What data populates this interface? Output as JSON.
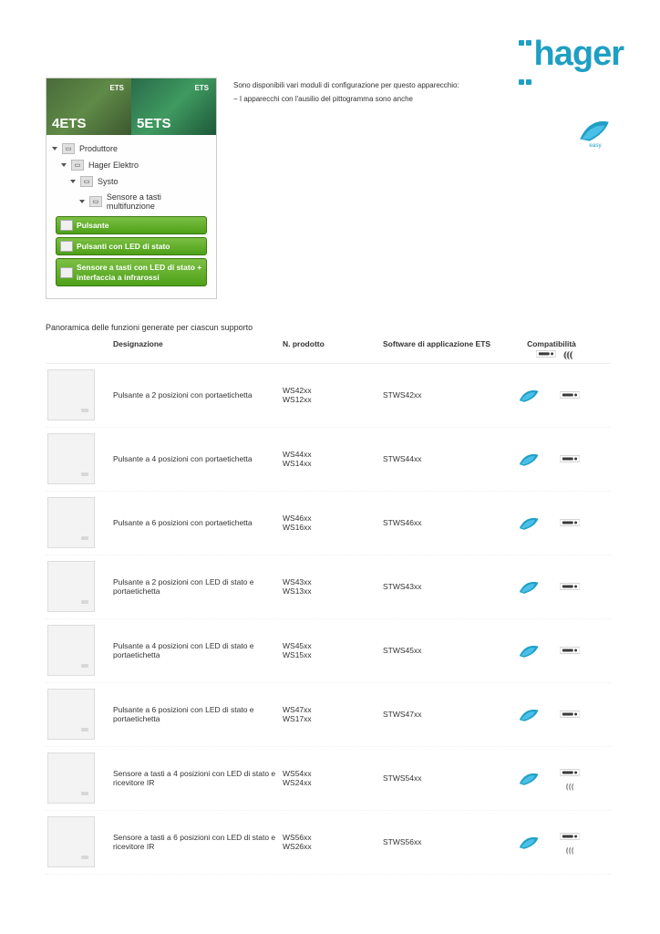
{
  "brand": {
    "name": "hager",
    "color": "#1e9fc4"
  },
  "ets_panel": {
    "badge4": "4ETS",
    "badge4_small": "ETS",
    "badge5": "5ETS",
    "badge5_small": "ETS",
    "tree": [
      {
        "level": 0,
        "label": "Produttore"
      },
      {
        "level": 1,
        "label": "Hager Elektro"
      },
      {
        "level": 2,
        "label": "Systo"
      },
      {
        "level": 3,
        "label": "Sensore a tasti multifunzione"
      }
    ],
    "buttons": [
      "Pulsante",
      "Pulsanti con LED di stato",
      "Sensore a tasti con LED di stato + interfaccia a infrarossi"
    ]
  },
  "intro_lines": [
    "Sono disponibili vari moduli di configurazione per questo apparecchio:",
    "−  I apparecchi con l'ausilio del pittogramma sono anche"
  ],
  "easytool_label": "easy",
  "section_title": "Panoramica delle funzioni generate per ciascun supporto",
  "columns": {
    "des": "Designazione",
    "prod": "N. prodotto",
    "soft": "Software di applicazione ETS",
    "comp": "Compatibilità"
  },
  "rows": [
    {
      "des": "Pulsante a 2 posizioni con portaetichetta",
      "prod": [
        "WS42xx",
        "WS12xx"
      ],
      "soft": "STWS42xx",
      "easy": true,
      "easylink": true,
      "wireless": false
    },
    {
      "des": "Pulsante a 4 posizioni con portaetichetta",
      "prod": [
        "WS44xx",
        "WS14xx"
      ],
      "soft": "STWS44xx",
      "easy": true,
      "easylink": true,
      "wireless": false
    },
    {
      "des": "Pulsante a 6 posizioni con portaetichetta",
      "prod": [
        "WS46xx",
        "WS16xx"
      ],
      "soft": "STWS46xx",
      "easy": true,
      "easylink": true,
      "wireless": false
    },
    {
      "des": "Pulsante a 2 posizioni con LED di stato e portaetichetta",
      "prod": [
        "WS43xx",
        "WS13xx"
      ],
      "soft": "STWS43xx",
      "easy": true,
      "easylink": true,
      "wireless": false
    },
    {
      "des": "Pulsante a 4 posizioni con LED di stato e portaetichetta",
      "prod": [
        "WS45xx",
        "WS15xx"
      ],
      "soft": "STWS45xx",
      "easy": true,
      "easylink": true,
      "wireless": false
    },
    {
      "des": "Pulsante a 6 posizioni con LED di stato e portaetichetta",
      "prod": [
        "WS47xx",
        "WS17xx"
      ],
      "soft": "STWS47xx",
      "easy": true,
      "easylink": true,
      "wireless": false
    },
    {
      "des": "Sensore a tasti a 4 posizioni con LED di stato e ricevitore IR",
      "prod": [
        "WS54xx",
        "WS24xx"
      ],
      "soft": "STWS54xx",
      "easy": true,
      "easylink": true,
      "wireless": true
    },
    {
      "des": "Sensore a tasti a 6 posizioni con LED di stato e ricevitore IR",
      "prod": [
        "WS56xx",
        "WS26xx"
      ],
      "soft": "STWS56xx",
      "easy": true,
      "easylink": true,
      "wireless": true
    }
  ],
  "colors": {
    "green_btn_top": "#7cc044",
    "green_btn_bottom": "#4ea018",
    "swoosh": "#1e9fc4",
    "easylink_dark": "#3a3a3a"
  }
}
